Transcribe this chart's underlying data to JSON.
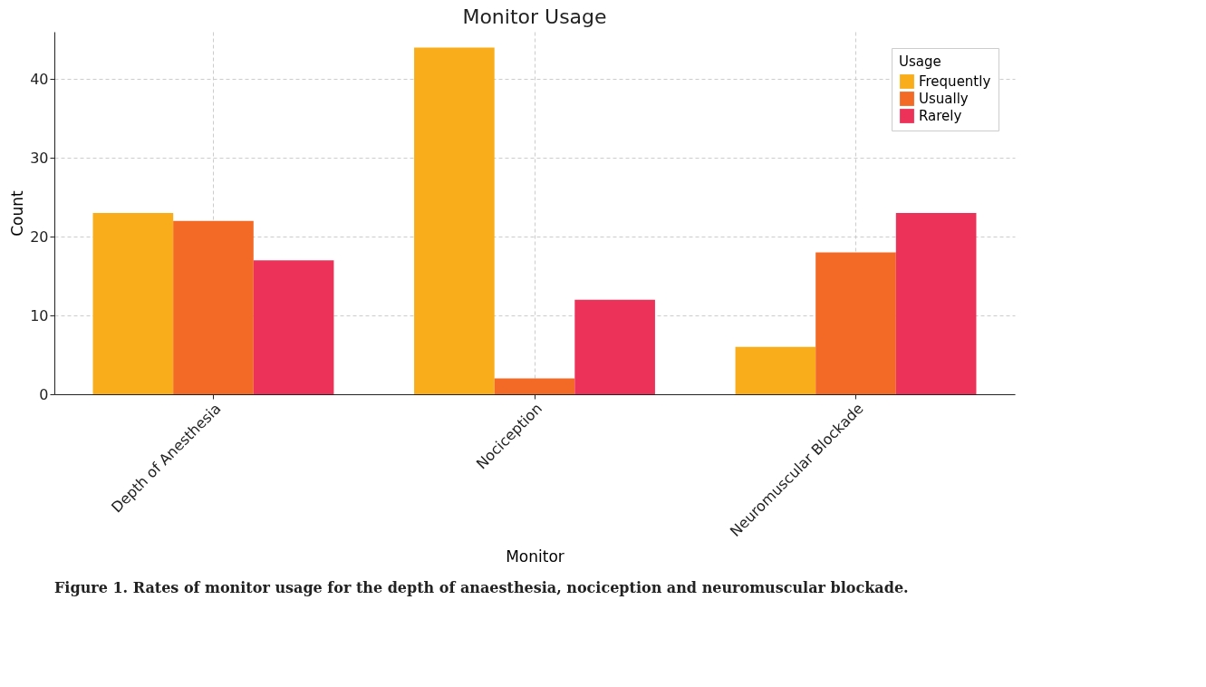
{
  "chart_data": {
    "type": "bar",
    "title": "Monitor Usage",
    "xlabel": "Monitor",
    "ylabel": "Count",
    "legend_title": "Usage",
    "categories": [
      "Depth of Anesthesia",
      "Nociception",
      "Neuromuscular Blockade"
    ],
    "series": [
      {
        "name": "Frequently",
        "color": "#f9ad1b",
        "values": [
          23,
          44,
          6
        ]
      },
      {
        "name": "Usually",
        "color": "#f26a26",
        "values": [
          22,
          2,
          18
        ]
      },
      {
        "name": "Rarely",
        "color": "#ed3259",
        "values": [
          17,
          12,
          23
        ]
      }
    ],
    "ylim": [
      0,
      46
    ],
    "yticks": [
      0,
      10,
      20,
      30,
      40
    ],
    "grid": true,
    "legend": "top right",
    "annotations": [
      "Figure 1. Rates of monitor usage for the depth of anaesthesia, nociception and neuromuscular blockade."
    ]
  }
}
